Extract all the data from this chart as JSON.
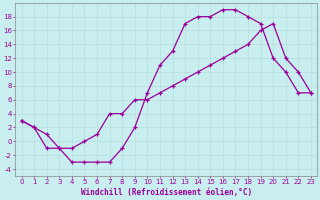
{
  "xlabel": "Windchill (Refroidissement éolien,°C)",
  "ylabel": "",
  "background_color": "#c8eef0",
  "line_color": "#990099",
  "grid_color": "#b8dde0",
  "xlim": [
    -0.5,
    23.5
  ],
  "ylim": [
    -5,
    20
  ],
  "xticks": [
    0,
    1,
    2,
    3,
    4,
    5,
    6,
    7,
    8,
    9,
    10,
    11,
    12,
    13,
    14,
    15,
    16,
    17,
    18,
    19,
    20,
    21,
    22,
    23
  ],
  "yticks": [
    -4,
    -2,
    0,
    2,
    4,
    6,
    8,
    10,
    12,
    14,
    16,
    18
  ],
  "line1_x": [
    0,
    1,
    2,
    3,
    4,
    5,
    6,
    7,
    8,
    9,
    10,
    11,
    12,
    13,
    14,
    15,
    16,
    17,
    18,
    19,
    20,
    21,
    22,
    23
  ],
  "line1_y": [
    3,
    2,
    -1,
    -1,
    -3,
    -3,
    -3,
    -3,
    -1,
    2,
    7,
    11,
    13,
    17,
    18,
    18,
    19,
    19,
    18,
    17,
    12,
    10,
    7,
    7
  ],
  "line2_x": [
    0,
    1,
    2,
    3,
    4,
    5,
    6,
    7,
    8,
    9,
    10,
    11,
    12,
    13,
    14,
    15,
    16,
    17,
    18,
    19,
    20,
    21,
    22,
    23
  ],
  "line2_y": [
    3,
    2,
    1,
    -1,
    -1,
    0,
    1,
    4,
    4,
    6,
    6,
    7,
    8,
    9,
    10,
    11,
    12,
    13,
    14,
    16,
    17,
    12,
    10,
    7
  ]
}
